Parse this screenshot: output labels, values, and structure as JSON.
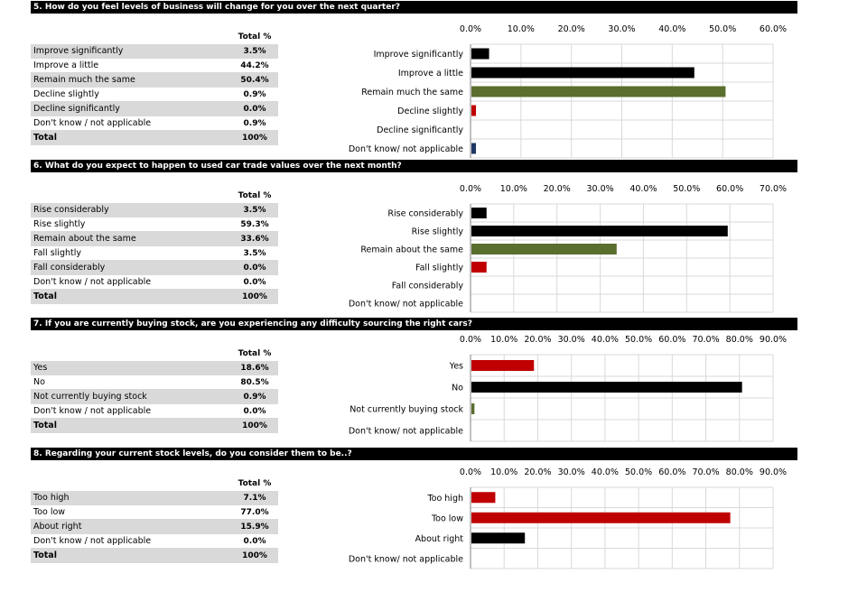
{
  "table_header": "Total %",
  "sections": [
    {
      "title": "5. How do you feel levels of business will change for you over the next quarter?",
      "rows": [
        {
          "label": "Improve significantly",
          "value": "3.5%"
        },
        {
          "label": "Improve a little",
          "value": "44.2%"
        },
        {
          "label": "Remain much the same",
          "value": "50.4%"
        },
        {
          "label": "Decline slightly",
          "value": "0.9%"
        },
        {
          "label": "Decline significantly",
          "value": "0.0%"
        },
        {
          "label": "Don't know / not applicable",
          "value": "0.9%"
        }
      ],
      "total": {
        "label": "Total",
        "value": "100%"
      }
    },
    {
      "title": "6. What do you expect to happen to used car trade values over the next month?",
      "rows": [
        {
          "label": "Rise considerably",
          "value": "3.5%"
        },
        {
          "label": "Rise slightly",
          "value": "59.3%"
        },
        {
          "label": "Remain about the same",
          "value": "33.6%"
        },
        {
          "label": "Fall slightly",
          "value": "3.5%"
        },
        {
          "label": "Fall considerably",
          "value": "0.0%"
        },
        {
          "label": "Don't know / not applicable",
          "value": "0.0%"
        }
      ],
      "total": {
        "label": "Total",
        "value": "100%"
      }
    },
    {
      "title": "7. If you are currently buying stock, are you experiencing any difficulty sourcing the right cars?",
      "rows": [
        {
          "label": "Yes",
          "value": "18.6%"
        },
        {
          "label": "No",
          "value": "80.5%"
        },
        {
          "label": "Not currently buying stock",
          "value": "0.9%"
        },
        {
          "label": "Don't know / not applicable",
          "value": "0.0%"
        }
      ],
      "total": {
        "label": "Total",
        "value": "100%"
      }
    },
    {
      "title": "8. Regarding your current stock levels, do you consider them to be..?",
      "rows": [
        {
          "label": "Too high",
          "value": "7.1%"
        },
        {
          "label": "Too low",
          "value": "77.0%"
        },
        {
          "label": "About right",
          "value": "15.9%"
        },
        {
          "label": "Don't know / not applicable",
          "value": "0.0%"
        }
      ],
      "total": {
        "label": "Total",
        "value": "100%"
      }
    }
  ],
  "colors": {
    "black": "#000000",
    "green": "#5a6e2e",
    "red": "#c00000",
    "navy": "#1f3864",
    "grid": "#d9d9d9"
  },
  "chart_data": [
    {
      "type": "bar",
      "orientation": "horizontal",
      "categories": [
        "Improve significantly",
        "Improve a little",
        "Remain much the same",
        "Decline slightly",
        "Decline significantly",
        "Don't know/ not applicable"
      ],
      "values": [
        3.5,
        44.2,
        50.4,
        0.9,
        0.0,
        0.9
      ],
      "bar_colors": [
        "black",
        "black",
        "green",
        "red",
        "red",
        "navy"
      ],
      "xlim": [
        0,
        60
      ],
      "tick_step": 10,
      "tick_labels": [
        "0.0%",
        "10.0%",
        "20.0%",
        "30.0%",
        "40.0%",
        "50.0%",
        "60.0%"
      ],
      "grid": true
    },
    {
      "type": "bar",
      "orientation": "horizontal",
      "categories": [
        "Rise considerably",
        "Rise slightly",
        "Remain about the same",
        "Fall slightly",
        "Fall considerably",
        "Don't know/ not applicable"
      ],
      "values": [
        3.5,
        59.3,
        33.6,
        3.5,
        0.0,
        0.0
      ],
      "bar_colors": [
        "black",
        "black",
        "green",
        "red",
        "red",
        "navy"
      ],
      "xlim": [
        0,
        70
      ],
      "tick_step": 10,
      "tick_labels": [
        "0.0%",
        "10.0%",
        "20.0%",
        "30.0%",
        "40.0%",
        "50.0%",
        "60.0%",
        "70.0%"
      ],
      "grid": true
    },
    {
      "type": "bar",
      "orientation": "horizontal",
      "categories": [
        "Yes",
        "No",
        "Not currently buying stock",
        "Don't know/ not applicable"
      ],
      "values": [
        18.6,
        80.5,
        0.9,
        0.0
      ],
      "bar_colors": [
        "red",
        "black",
        "green",
        "navy"
      ],
      "xlim": [
        0,
        90
      ],
      "tick_step": 10,
      "tick_labels": [
        "0.0%",
        "10.0%",
        "20.0%",
        "30.0%",
        "40.0%",
        "50.0%",
        "60.0%",
        "70.0%",
        "80.0%",
        "90.0%"
      ],
      "grid": true
    },
    {
      "type": "bar",
      "orientation": "horizontal",
      "categories": [
        "Too high",
        "Too low",
        "About right",
        "Don't know/ not applicable"
      ],
      "values": [
        7.1,
        77.0,
        15.9,
        0.0
      ],
      "bar_colors": [
        "red",
        "red",
        "black",
        "navy"
      ],
      "xlim": [
        0,
        90
      ],
      "tick_step": 10,
      "tick_labels": [
        "0.0%",
        "10.0%",
        "20.0%",
        "30.0%",
        "40.0%",
        "50.0%",
        "60.0%",
        "70.0%",
        "80.0%",
        "90.0%"
      ],
      "grid": true
    }
  ]
}
